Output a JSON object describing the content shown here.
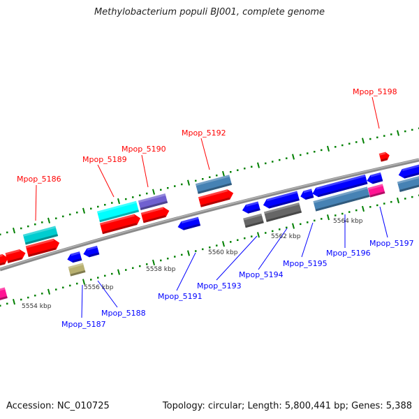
{
  "title": "Methylobacterium populi BJ001, complete genome",
  "footer": {
    "accession": "Accession: NC_010725",
    "summary": "Topology: circular; Length: 5,800,441 bp; Genes: 5,388"
  },
  "colors": {
    "forward_label": "#ff0000",
    "reverse_label": "#0000ff",
    "backbone": "#808080",
    "ticks": "#008000"
  },
  "scale_labels": [
    "5554 kbp",
    "5556 kbp",
    "5558 kbp",
    "5560 kbp",
    "5562 kbp",
    "5564 kbp"
  ],
  "forward_genes": [
    "Mpop_5186",
    "Mpop_5189",
    "Mpop_5190",
    "Mpop_5192",
    "Mpop_5198"
  ],
  "reverse_genes": [
    "Mpop_5187",
    "Mpop_5188",
    "Mpop_5191",
    "Mpop_5193",
    "Mpop_5194",
    "Mpop_5195",
    "Mpop_5196",
    "Mpop_5197"
  ]
}
